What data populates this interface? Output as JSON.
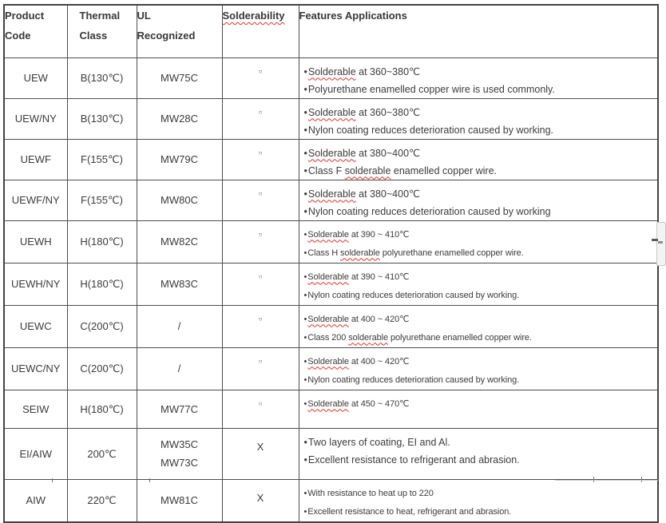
{
  "colors": {
    "text": "#3c3c3c",
    "border": "#4d4d4d",
    "squiggle_red": "#e03227",
    "background": "#ffffff"
  },
  "header": {
    "columns": [
      {
        "lines": [
          "Product",
          "Code"
        ],
        "misspelled": false
      },
      {
        "lines": [
          "Thermal",
          "Class"
        ],
        "misspelled": false
      },
      {
        "lines": [
          "UL",
          "Recognized"
        ],
        "misspelled": false
      },
      {
        "lines": [
          "Solderability"
        ],
        "misspelled": true
      },
      {
        "lines": [
          "Features Applications"
        ],
        "misspelled": false
      }
    ]
  },
  "solder_symbols": {
    "good": "○",
    "bad": "X"
  },
  "rows": [
    {
      "code": "UEW",
      "thermal": "B(130℃)",
      "ul": [
        "MW75C"
      ],
      "solderability": "○",
      "features": [
        [
          {
            "t": "Solderable",
            "sp": true
          },
          {
            "t": " at 360~380℃"
          }
        ],
        [
          {
            "t": "Polyurethane enamelled copper wire is used commonly."
          }
        ]
      ]
    },
    {
      "code": "UEW/NY",
      "thermal": "B(130℃)",
      "ul": [
        "MW28C"
      ],
      "solderability": "○",
      "features": [
        [
          {
            "t": "Solderable",
            "sp": true
          },
          {
            "t": " at 360~380℃"
          }
        ],
        [
          {
            "t": "Nylon coating reduces deterioration caused by working."
          }
        ]
      ]
    },
    {
      "code": "UEWF",
      "thermal": "F(155℃)",
      "ul": [
        "MW79C"
      ],
      "solderability": "○",
      "features": [
        [
          {
            "t": "Solderable",
            "sp": true
          },
          {
            "t": " at 380~400℃"
          }
        ],
        [
          {
            "t": "Class F "
          },
          {
            "t": "solderable",
            "sp": true
          },
          {
            "t": " enamelled copper wire."
          }
        ]
      ]
    },
    {
      "code": "UEWF/NY",
      "thermal": "F(155℃)",
      "ul": [
        "MW80C"
      ],
      "solderability": "○",
      "features": [
        [
          {
            "t": "Solderable",
            "sp": true
          },
          {
            "t": " at 380~400℃"
          }
        ],
        [
          {
            "t": "Nylon coating reduces deterioration caused by working"
          }
        ]
      ]
    },
    {
      "code": "UEWH",
      "thermal": "H(180℃)",
      "ul": [
        "MW82C"
      ],
      "solderability": "○",
      "features": [
        [
          {
            "t": "Solderable",
            "sp": true
          },
          {
            "t": " at 390 ~ 410℃"
          }
        ],
        [
          {
            "t": "Class H "
          },
          {
            "t": "solderable",
            "sp": true
          },
          {
            "t": " polyurethane enamelled copper wire."
          }
        ]
      ]
    },
    {
      "code": "UEWH/NY",
      "thermal": "H(180℃)",
      "ul": [
        "MW83C"
      ],
      "solderability": "○",
      "features": [
        [
          {
            "t": "Solderable",
            "sp": true
          },
          {
            "t": " at 390 ~ 410℃"
          }
        ],
        [
          {
            "t": "Nylon coating reduces deterioration caused by working."
          }
        ]
      ]
    },
    {
      "code": "UEWC",
      "thermal": "C(200℃)",
      "ul": [
        "/"
      ],
      "solderability": "○",
      "features": [
        [
          {
            "t": "Solderable",
            "sp": true
          },
          {
            "t": " at 400 ~ 420℃"
          }
        ],
        [
          {
            "t": "Class 200 "
          },
          {
            "t": "solderable",
            "sp": true
          },
          {
            "t": " polyurethane enamelled copper wire."
          }
        ]
      ]
    },
    {
      "code": "UEWC/NY",
      "thermal": "C(200℃)",
      "ul": [
        "/"
      ],
      "solderability": "○",
      "features": [
        [
          {
            "t": "Solderable",
            "sp": true
          },
          {
            "t": " at 400 ~ 420℃"
          }
        ],
        [
          {
            "t": "Nylon coating reduces deterioration caused by working."
          }
        ]
      ]
    },
    {
      "code": "SEIW",
      "thermal": "H(180℃)",
      "ul": [
        "MW77C"
      ],
      "solderability": "○",
      "features": [
        [
          {
            "t": "Solderable",
            "sp": true
          },
          {
            "t": " at 450 ~ 470℃"
          }
        ]
      ]
    },
    {
      "code": "EI/AIW",
      "thermal": "200℃",
      "ul": [
        "MW35C",
        "MW73C"
      ],
      "solderability": "X",
      "features": [
        [
          {
            "t": "Two layers of coating, EI and Al."
          }
        ],
        [
          {
            "t": "Excellent resistance to refrigerant and abrasion."
          }
        ]
      ]
    },
    {
      "code": "AIW",
      "thermal": "220℃",
      "ul": [
        "MW81C"
      ],
      "solderability": "X",
      "features": [
        [
          {
            "t": "With resistance to heat up to 220"
          }
        ],
        [
          {
            "t": "Excellent resistance to heat, refrigerant and abrasion."
          }
        ]
      ]
    }
  ]
}
